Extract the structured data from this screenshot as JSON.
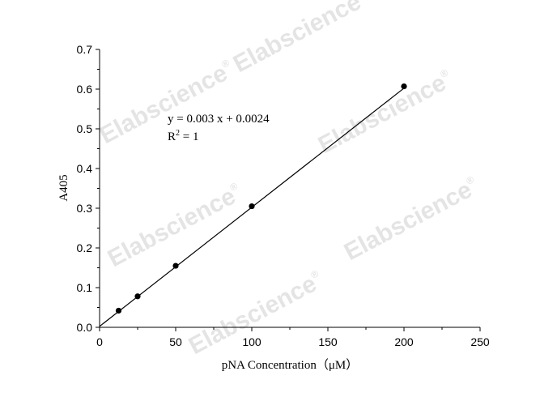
{
  "watermark": "Elabscience",
  "watermark_mark": "®",
  "chart_data": {
    "type": "scatter",
    "xlabel": "pNA Concentration（μM）",
    "ylabel": "A405",
    "xlim": [
      0,
      250
    ],
    "ylim": [
      0,
      0.7
    ],
    "x_ticks": [
      "0",
      "50",
      "100",
      "150",
      "200",
      "250"
    ],
    "y_ticks": [
      "0.0",
      "0.1",
      "0.2",
      "0.3",
      "0.4",
      "0.5",
      "0.6",
      "0.7"
    ],
    "x": [
      12.5,
      25,
      50,
      100,
      200
    ],
    "y": [
      0.042,
      0.078,
      0.155,
      0.305,
      0.607
    ],
    "fit": {
      "slope": 0.003,
      "intercept": 0.0024,
      "x_range": [
        0,
        200
      ]
    },
    "annotation": {
      "equation": "y = 0.003 x + 0.0024",
      "r2_prefix": "R",
      "r2_sup": "2",
      "r2_value": " = 1"
    },
    "grid": false,
    "legend": "none"
  }
}
